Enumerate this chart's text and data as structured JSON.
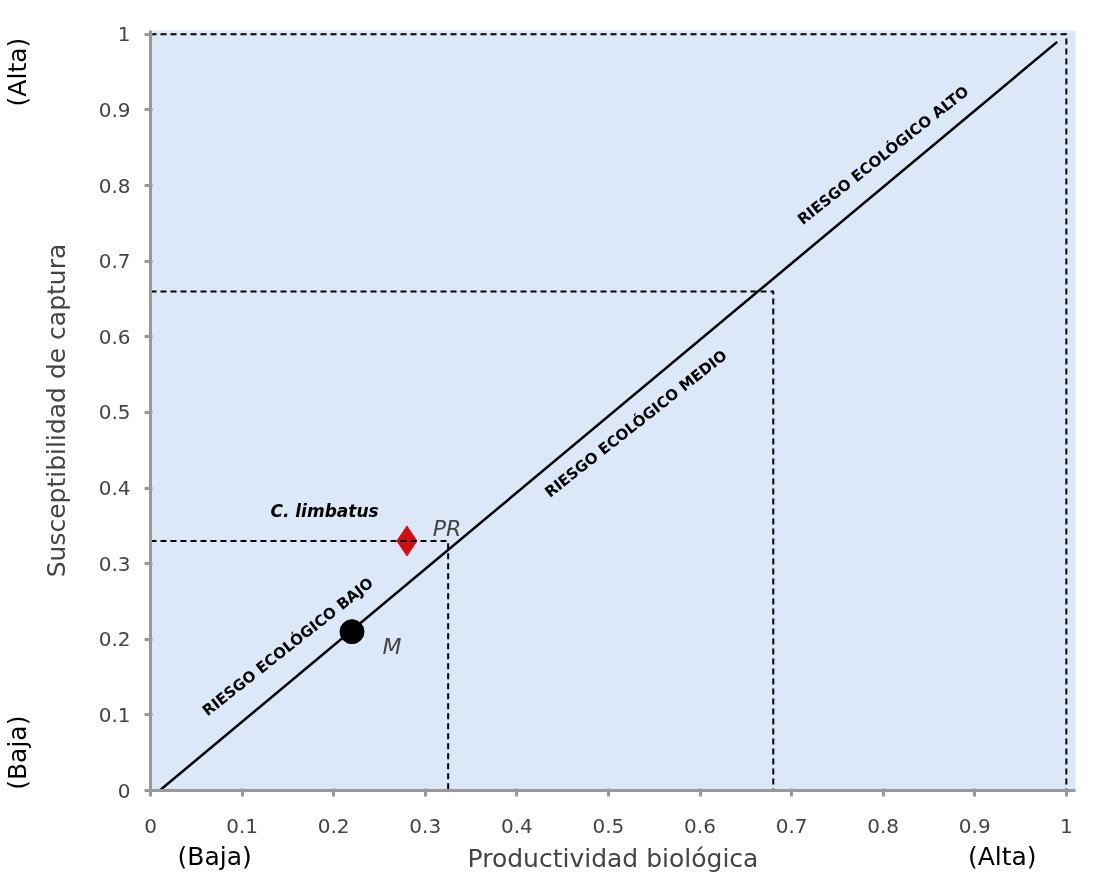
{
  "chart_data": {
    "type": "scatter",
    "xlabel": "Productividad biológica",
    "ylabel": "Susceptibilidad de captura",
    "xlim": [
      0,
      1.01
    ],
    "ylim": [
      0,
      1.005
    ],
    "xticks": [
      0,
      0.1,
      0.2,
      0.3,
      0.4,
      0.5,
      0.6,
      0.7,
      0.8,
      0.9,
      1
    ],
    "yticks": [
      0,
      0.1,
      0.2,
      0.3,
      0.4,
      0.5,
      0.6,
      0.7,
      0.8,
      0.9,
      1
    ],
    "grid": false,
    "series": [
      {
        "name": "PR",
        "color": "#d01010",
        "marker": "diamond",
        "x": [
          0.28
        ],
        "values": [
          0.33
        ]
      },
      {
        "name": "M",
        "color": "#000000",
        "marker": "circle",
        "x": [
          0.22
        ],
        "values": [
          0.21
        ]
      },
      {
        "type": "line",
        "color": "#000000",
        "line_style": "solid",
        "x": [
          0.01,
          0.99
        ],
        "values": [
          0.0,
          0.99
        ]
      },
      {
        "type": "line",
        "color": "#000000",
        "line_style": "dashed",
        "x": [
          0,
          0.325,
          0.325
        ],
        "values": [
          0.33,
          0.33,
          0
        ]
      },
      {
        "type": "line",
        "color": "#000000",
        "line_style": "dashed",
        "x": [
          0,
          0.68,
          0.68
        ],
        "values": [
          0.66,
          0.66,
          0
        ]
      },
      {
        "type": "line",
        "color": "#000000",
        "line_style": "dashed",
        "x": [
          0,
          1,
          1
        ],
        "values": [
          1,
          1,
          0
        ]
      }
    ],
    "annotations": [
      "RIESGO ECOLÓGICO BAJO",
      "RIESGO ECOLÓGICO MEDIO",
      "RIESGO ECOLÓGICO ALTO",
      "C. limbatus",
      "(Baja)",
      "(Alta)",
      "(Baja)",
      "(Alta)"
    ]
  }
}
